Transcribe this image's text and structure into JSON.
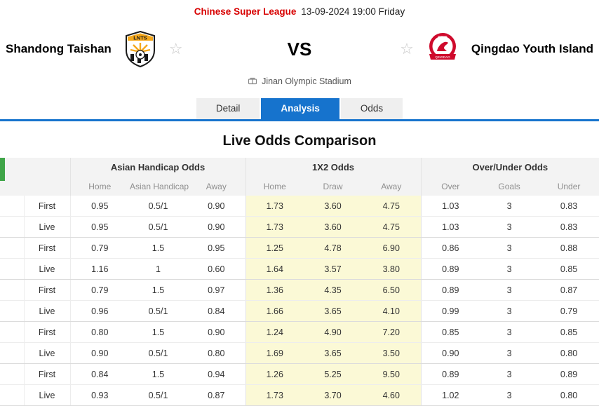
{
  "header": {
    "league": "Chinese Super League",
    "datetime": "13-09-2024 19:00 Friday",
    "home_team": "Shandong Taishan",
    "away_team": "Qingdao Youth Island",
    "vs": "VS",
    "stadium": "Jinan Olympic Stadium"
  },
  "icons": {
    "favorite_star": "☆"
  },
  "tabs": [
    {
      "label": "Detail",
      "active": false
    },
    {
      "label": "Analysis",
      "active": true
    },
    {
      "label": "Odds",
      "active": false
    }
  ],
  "section_title": "Live Odds Comparison",
  "table": {
    "groups": [
      "Asian Handicap Odds",
      "1X2 Odds",
      "Over/Under Odds"
    ],
    "columns": [
      "Home",
      "Asian Handicap",
      "Away",
      "Home",
      "Draw",
      "Away",
      "Over",
      "Goals",
      "Under"
    ],
    "rows": [
      {
        "type": "First",
        "values": [
          "0.95",
          "0.5/1",
          "0.90",
          "1.73",
          "3.60",
          "4.75",
          "1.03",
          "3",
          "0.83"
        ]
      },
      {
        "type": "Live",
        "values": [
          "0.95",
          "0.5/1",
          "0.90",
          "1.73",
          "3.60",
          "4.75",
          "1.03",
          "3",
          "0.83"
        ]
      },
      {
        "type": "First",
        "values": [
          "0.79",
          "1.5",
          "0.95",
          "1.25",
          "4.78",
          "6.90",
          "0.86",
          "3",
          "0.88"
        ]
      },
      {
        "type": "Live",
        "values": [
          "1.16",
          "1",
          "0.60",
          "1.64",
          "3.57",
          "3.80",
          "0.89",
          "3",
          "0.85"
        ]
      },
      {
        "type": "First",
        "values": [
          "0.79",
          "1.5",
          "0.97",
          "1.36",
          "4.35",
          "6.50",
          "0.89",
          "3",
          "0.87"
        ]
      },
      {
        "type": "Live",
        "values": [
          "0.96",
          "0.5/1",
          "0.84",
          "1.66",
          "3.65",
          "4.10",
          "0.99",
          "3",
          "0.79"
        ]
      },
      {
        "type": "First",
        "values": [
          "0.80",
          "1.5",
          "0.90",
          "1.24",
          "4.90",
          "7.20",
          "0.85",
          "3",
          "0.85"
        ]
      },
      {
        "type": "Live",
        "values": [
          "0.90",
          "0.5/1",
          "0.80",
          "1.69",
          "3.65",
          "3.50",
          "0.90",
          "3",
          "0.80"
        ]
      },
      {
        "type": "First",
        "values": [
          "0.84",
          "1.5",
          "0.94",
          "1.26",
          "5.25",
          "9.50",
          "0.89",
          "3",
          "0.89"
        ]
      },
      {
        "type": "Live",
        "values": [
          "0.93",
          "0.5/1",
          "0.87",
          "1.73",
          "3.70",
          "4.60",
          "1.02",
          "3",
          "0.80"
        ]
      }
    ]
  },
  "colors": {
    "accent_blue": "#1673cd",
    "league_red": "#d80000",
    "odds_highlight": "#fbf9d6",
    "green_fragment": "#3fa548"
  }
}
